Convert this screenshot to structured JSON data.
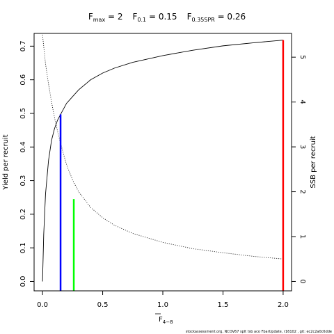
{
  "chart_data": {
    "type": "line",
    "title": {
      "parts": [
        {
          "base": "F",
          "sub": "max",
          "value": " = 2"
        },
        {
          "base": "F",
          "sub": "0.1",
          "value": " = 0.15"
        },
        {
          "base": "F",
          "sub": "0.35SPR",
          "value": " = 0.26"
        }
      ]
    },
    "xlabel": {
      "base": "F",
      "sub": "4−8",
      "overline": true
    },
    "ylabel": "Yield per recruit",
    "y2label": "SSB per recruit",
    "xlim": [
      -0.07,
      2.07
    ],
    "ylim": [
      -0.028,
      0.738
    ],
    "y2lim": [
      -0.21,
      5.53
    ],
    "x_ticks": [
      0.0,
      0.5,
      1.0,
      1.5,
      2.0
    ],
    "x_tick_labels": [
      "0.0",
      "0.5",
      "1.0",
      "1.5",
      "2.0"
    ],
    "y_ticks": [
      0.0,
      0.1,
      0.2,
      0.3,
      0.4,
      0.5,
      0.6,
      0.7
    ],
    "y_tick_labels": [
      "0.0",
      "0.1",
      "0.2",
      "0.3",
      "0.4",
      "0.5",
      "0.6",
      "0.7"
    ],
    "y2_ticks": [
      0,
      1,
      2,
      3,
      4,
      5
    ],
    "y2_tick_labels": [
      "0",
      "1",
      "2",
      "3",
      "4",
      "5"
    ],
    "series": [
      {
        "style": "solid",
        "axis": "left",
        "x": [
          0.0,
          0.01,
          0.025,
          0.05,
          0.075,
          0.1,
          0.125,
          0.15,
          0.2,
          0.25,
          0.3,
          0.4,
          0.5,
          0.6,
          0.75,
          1.0,
          1.25,
          1.5,
          1.75,
          2.0
        ],
        "y": [
          0.0,
          0.14,
          0.26,
          0.36,
          0.42,
          0.455,
          0.48,
          0.497,
          0.53,
          0.55,
          0.57,
          0.6,
          0.62,
          0.635,
          0.652,
          0.672,
          0.688,
          0.701,
          0.71,
          0.718
        ]
      },
      {
        "style": "dotted",
        "axis": "right",
        "x": [
          0.0,
          0.025,
          0.05,
          0.075,
          0.1,
          0.125,
          0.15,
          0.2,
          0.25,
          0.3,
          0.4,
          0.5,
          0.6,
          0.75,
          1.0,
          1.25,
          1.5,
          1.75,
          2.0
        ],
        "y": [
          5.5,
          4.85,
          4.4,
          4.0,
          3.65,
          3.35,
          3.08,
          2.6,
          2.26,
          2.0,
          1.65,
          1.42,
          1.25,
          1.07,
          0.87,
          0.73,
          0.64,
          0.56,
          0.5
        ]
      }
    ],
    "reference_lines": [
      {
        "x": 0.15,
        "y": 0.497,
        "color": "#0000ff"
      },
      {
        "x": 0.26,
        "y": 0.245,
        "color": "#00ff00"
      },
      {
        "x": 2.0,
        "y": 0.718,
        "color": "#ff0000"
      }
    ]
  },
  "footer": "stockassessment.org, NCOV67 splt tsb aco FbarUpdate, r16102 , git: ec2c2a0c6dde"
}
